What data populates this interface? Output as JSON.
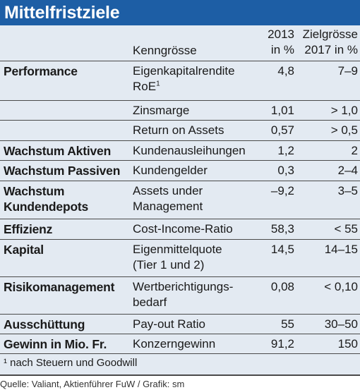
{
  "title": "Mittelfristziele",
  "header": {
    "metric": "Kenngrösse",
    "col2013_line1": "2013",
    "col2013_line2": "in %",
    "target_line1": "Zielgrösse",
    "target_line2": "2017 in %"
  },
  "rows": [
    {
      "label": "Performance",
      "metric_l1": "Eigenkapitalrendite",
      "metric_l2": "RoE",
      "sup": "1",
      "v2013": "4,8",
      "target": "7–9"
    },
    {
      "label": "",
      "metric_l1": "Zinsmarge",
      "v2013": "1,01",
      "target": "> 1,0"
    },
    {
      "label": "",
      "metric_l1": "Return on Assets",
      "v2013": "0,57",
      "target": "> 0,5"
    },
    {
      "label": "Wachstum Aktiven",
      "metric_l1": "Kundenausleihungen",
      "v2013": "1,2",
      "target": "2"
    },
    {
      "label": "Wachstum Passiven",
      "metric_l1": "Kundengelder",
      "v2013": "0,3",
      "target": "2–4"
    },
    {
      "label_l1": "Wachstum",
      "label_l2": "Kundendepots",
      "metric_l1": "Assets under",
      "metric_l2": "Management",
      "v2013": "–9,2",
      "target": "3–5"
    },
    {
      "label": "Effizienz",
      "metric_l1": "Cost-Income-Ratio",
      "v2013": "58,3",
      "target": "< 55"
    },
    {
      "label": "Kapital",
      "metric_l1": "Eigenmittelquote",
      "metric_l2": "(Tier 1 und 2)",
      "v2013": "14,5",
      "target": "14–15"
    },
    {
      "label": "Risikomanagement",
      "metric_l1": "Wertberichtigungs-",
      "metric_l2": "bedarf",
      "v2013": "0,08",
      "target": "< 0,10"
    },
    {
      "label": "Ausschüttung",
      "metric_l1": "Pay-out Ratio",
      "v2013": "55",
      "target": "30–50"
    },
    {
      "label": "Gewinn in Mio. Fr.",
      "metric_l1": "Konzerngewinn",
      "v2013": "91,2",
      "target": "150"
    }
  ],
  "footnote": "¹ nach Steuern und Goodwill",
  "source": "Quelle: Valiant, Aktienführer FuW / Grafik: sm",
  "colors": {
    "title_bg": "#1d5ea5",
    "table_bg": "#e3eaf2",
    "rule": "#4a4a4a"
  }
}
